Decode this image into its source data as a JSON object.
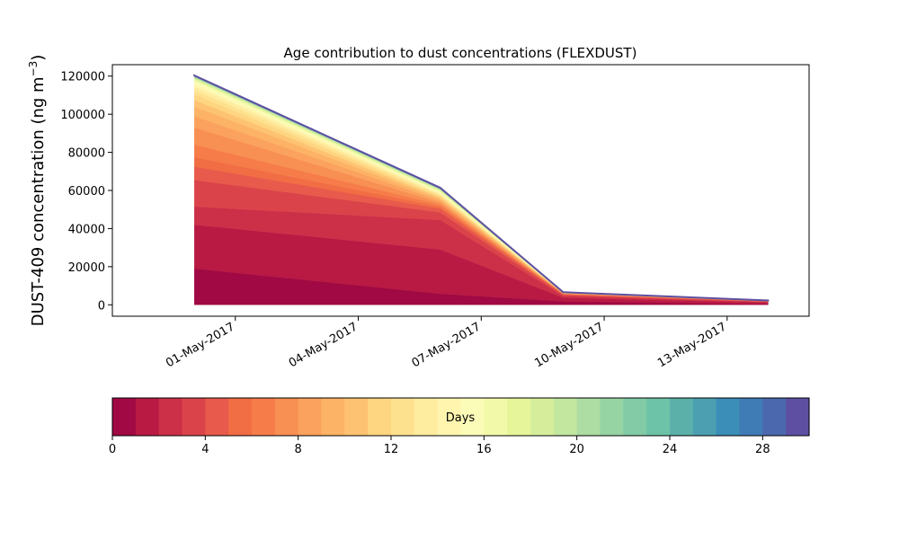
{
  "chart_data": {
    "type": "area",
    "title": "Age contribution to dust concentrations (FLEXDUST)",
    "ylabel_main": "DUST-409 concentration (ng m",
    "ylabel_exp": "−3",
    "ylabel_close": ")",
    "xlabel": "",
    "x": [
      "2017-04-30",
      "2017-05-06",
      "2017-05-09",
      "2017-05-14"
    ],
    "xlim": [
      "2017-04-28",
      "2017-05-15"
    ],
    "ylim": [
      -6000,
      126000
    ],
    "x_ticks": [
      "2017-05-01",
      "2017-05-04",
      "2017-05-07",
      "2017-05-10",
      "2017-05-13"
    ],
    "x_tick_labels": [
      "01-May-2017",
      "04-May-2017",
      "07-May-2017",
      "10-May-2017",
      "13-May-2017"
    ],
    "y_ticks": [
      0,
      20000,
      40000,
      60000,
      80000,
      100000,
      120000
    ],
    "y_tick_labels": [
      "0",
      "20000",
      "40000",
      "60000",
      "80000",
      "100000",
      "120000"
    ],
    "grid": false,
    "series_count": 30,
    "cumulative_totals": [
      [
        19000,
        42000,
        51500,
        65500,
        72500,
        77500,
        84000,
        93000,
        99000,
        104000,
        107500,
        110500,
        112800,
        114600,
        116000,
        117200,
        118000,
        118600,
        119000,
        119300,
        119550,
        119750,
        119900,
        120000,
        120100,
        120150,
        120200,
        120250,
        120300,
        120350
      ],
      [
        5800,
        29000,
        44500,
        48500,
        50500,
        51500,
        52500,
        53600,
        54600,
        55500,
        56300,
        57000,
        57600,
        58200,
        58700,
        59200,
        59600,
        60000,
        60300,
        60550,
        60750,
        60900,
        61000,
        61100,
        61200,
        61250,
        61300,
        61350,
        61380,
        61400
      ],
      [
        1800,
        3700,
        4600,
        5200,
        5500,
        5700,
        5850,
        5950,
        6050,
        6150,
        6250,
        6320,
        6380,
        6420,
        6450,
        6470,
        6490,
        6510,
        6520,
        6530,
        6540,
        6550,
        6560,
        6570,
        6580,
        6590,
        6595,
        6600,
        6605,
        6610
      ],
      [
        400,
        1100,
        1500,
        1700,
        1800,
        1870,
        1920,
        1960,
        2000,
        2030,
        2060,
        2090,
        2110,
        2130,
        2150,
        2165,
        2180,
        2190,
        2200,
        2210,
        2220,
        2230,
        2240,
        2250,
        2255,
        2260,
        2265,
        2270,
        2275,
        2280
      ]
    ],
    "colorbar": {
      "label": "Days",
      "range": [
        0,
        30
      ],
      "ticks": [
        "0",
        "4",
        "8",
        "12",
        "16",
        "20",
        "24",
        "28"
      ],
      "tick_values": [
        0,
        4,
        8,
        12,
        16,
        20,
        24,
        28
      ],
      "colors": [
        "#a00943",
        "#b81a44",
        "#cc2f48",
        "#db434a",
        "#e85a4b",
        "#f16d44",
        "#f67c4a",
        "#f88f53",
        "#fba25e",
        "#fdb366",
        "#fdc372",
        "#fed581",
        "#fee18f",
        "#feec9f",
        "#fff5ae",
        "#fbfcb8",
        "#f2faaa",
        "#e7f59a",
        "#d6ee9b",
        "#c3e79f",
        "#addda2",
        "#97d4a4",
        "#82cba6",
        "#6dc3a7",
        "#5bb1aa",
        "#4b9fb0",
        "#3a8eb7",
        "#3f7cb6",
        "#4b68ae",
        "#5e4fa2"
      ]
    }
  }
}
